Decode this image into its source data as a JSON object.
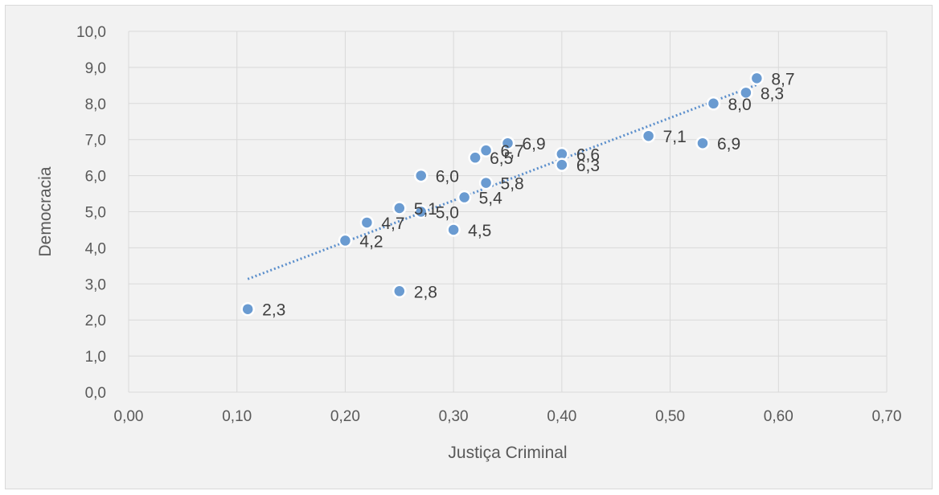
{
  "chart_data": {
    "type": "scatter",
    "title": "",
    "xlabel": "Justiça Criminal",
    "ylabel": "Democracia",
    "xlim": [
      0,
      0.7
    ],
    "ylim": [
      0,
      10
    ],
    "x_tick_labels": [
      "0,00",
      "0,10",
      "0,20",
      "0,30",
      "0,40",
      "0,50",
      "0,60",
      "0,70"
    ],
    "y_tick_labels": [
      "0,0",
      "1,0",
      "2,0",
      "3,0",
      "4,0",
      "5,0",
      "6,0",
      "7,0",
      "8,0",
      "9,0",
      "10,0"
    ],
    "grid": true,
    "trendline": {
      "type": "linear",
      "style": "dotted",
      "x_range": [
        0.11,
        0.58
      ]
    },
    "colors": {
      "marker": "#6a9bd1",
      "marker_edge": "#ffffff",
      "trendline": "#5b8fcc",
      "grid": "#d9d9d9",
      "background": "#f2f2f2"
    },
    "points": [
      {
        "x": 0.11,
        "y": 2.3,
        "label": "2,3"
      },
      {
        "x": 0.25,
        "y": 2.8,
        "label": "2,8"
      },
      {
        "x": 0.2,
        "y": 4.2,
        "label": "4,2"
      },
      {
        "x": 0.22,
        "y": 4.7,
        "label": "4,7"
      },
      {
        "x": 0.25,
        "y": 5.1,
        "label": "5,1"
      },
      {
        "x": 0.27,
        "y": 5.0,
        "label": "5,0"
      },
      {
        "x": 0.3,
        "y": 4.5,
        "label": "4,5"
      },
      {
        "x": 0.27,
        "y": 6.0,
        "label": "6,0"
      },
      {
        "x": 0.31,
        "y": 5.4,
        "label": "5,4"
      },
      {
        "x": 0.33,
        "y": 5.8,
        "label": "5,8"
      },
      {
        "x": 0.32,
        "y": 6.5,
        "label": "6,5"
      },
      {
        "x": 0.33,
        "y": 6.7,
        "label": "6,7"
      },
      {
        "x": 0.35,
        "y": 6.9,
        "label": "6,9"
      },
      {
        "x": 0.4,
        "y": 6.6,
        "label": "6,6"
      },
      {
        "x": 0.4,
        "y": 6.3,
        "label": "6,3"
      },
      {
        "x": 0.48,
        "y": 7.1,
        "label": "7,1"
      },
      {
        "x": 0.53,
        "y": 6.9,
        "label": "6,9"
      },
      {
        "x": 0.54,
        "y": 8.0,
        "label": "8,0"
      },
      {
        "x": 0.57,
        "y": 8.3,
        "label": "8,3"
      },
      {
        "x": 0.58,
        "y": 8.7,
        "label": "8,7"
      }
    ]
  }
}
